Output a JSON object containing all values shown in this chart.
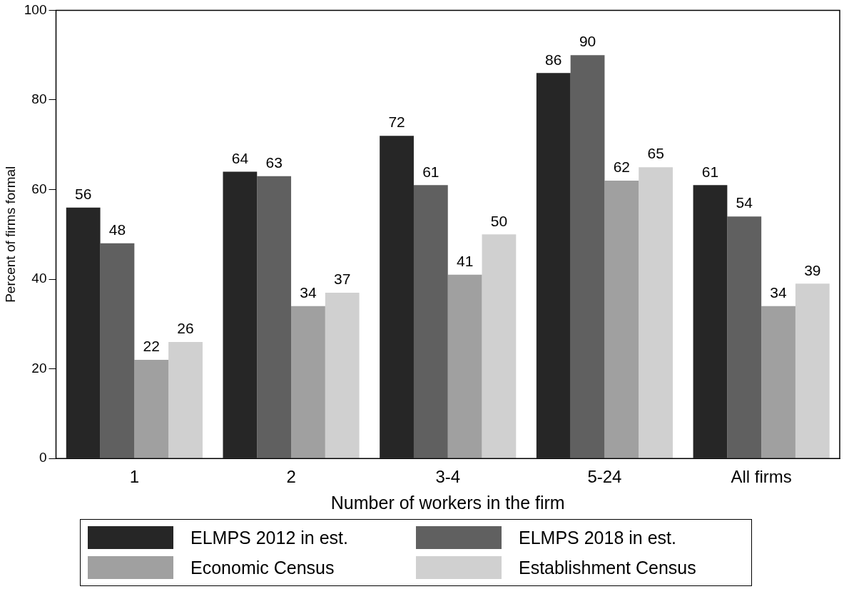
{
  "chart_data": {
    "type": "bar",
    "xlabel": "Number of workers in the firm",
    "ylabel": "Percent of firms formal",
    "categories": [
      "1",
      "2",
      "3-4",
      "5-24",
      "All firms"
    ],
    "series": [
      {
        "name": "ELMPS 2012 in est.",
        "color": "#262626",
        "values": [
          56,
          64,
          72,
          86,
          61
        ]
      },
      {
        "name": "ELMPS 2018 in est.",
        "color": "#606060",
        "values": [
          48,
          63,
          61,
          90,
          54
        ]
      },
      {
        "name": "Economic Census",
        "color": "#a0a0a0",
        "values": [
          22,
          34,
          41,
          62,
          34
        ]
      },
      {
        "name": "Establishment Census",
        "color": "#d0d0d0",
        "values": [
          26,
          37,
          50,
          65,
          39
        ]
      }
    ],
    "ylim": [
      0,
      100
    ],
    "yticks": [
      0,
      20,
      40,
      60,
      80,
      100
    ],
    "grid": false,
    "legend": "bottom",
    "data_labels": true
  }
}
